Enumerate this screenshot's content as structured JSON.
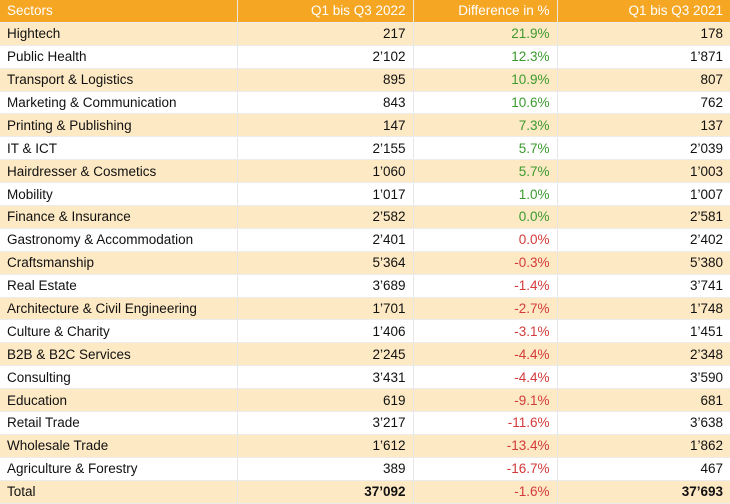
{
  "headers": [
    "Sectors",
    "Q1 bis Q3 2022",
    "Difference in %",
    "Q1 bis Q3 2021"
  ],
  "colors": {
    "header_bg": "#f5a623",
    "band_bg": "#fde9c4",
    "positive": "#3b9a2e",
    "negative": "#d33a3a"
  },
  "rows": [
    {
      "sector": "Hightech",
      "q2022": "217",
      "diff": "21.9%",
      "q2021": "178",
      "trend": "pos"
    },
    {
      "sector": "Public Health",
      "q2022": "2’102",
      "diff": "12.3%",
      "q2021": "1’871",
      "trend": "pos"
    },
    {
      "sector": "Transport & Logistics",
      "q2022": "895",
      "diff": "10.9%",
      "q2021": "807",
      "trend": "pos"
    },
    {
      "sector": "Marketing & Communication",
      "q2022": "843",
      "diff": "10.6%",
      "q2021": "762",
      "trend": "pos"
    },
    {
      "sector": "Printing & Publishing",
      "q2022": "147",
      "diff": "7.3%",
      "q2021": "137",
      "trend": "pos"
    },
    {
      "sector": "IT & ICT",
      "q2022": "2’155",
      "diff": "5.7%",
      "q2021": "2’039",
      "trend": "pos"
    },
    {
      "sector": "Hairdresser & Cosmetics",
      "q2022": "1’060",
      "diff": "5.7%",
      "q2021": "1’003",
      "trend": "pos"
    },
    {
      "sector": "Mobility",
      "q2022": "1’017",
      "diff": "1.0%",
      "q2021": "1’007",
      "trend": "pos"
    },
    {
      "sector": "Finance & Insurance",
      "q2022": "2’582",
      "diff": "0.0%",
      "q2021": "2’581",
      "trend": "pos"
    },
    {
      "sector": "Gastronomy & Accommodation",
      "q2022": "2’401",
      "diff": "0.0%",
      "q2021": "2’402",
      "trend": "neg"
    },
    {
      "sector": "Craftsmanship",
      "q2022": "5’364",
      "diff": "-0.3%",
      "q2021": "5’380",
      "trend": "neg"
    },
    {
      "sector": "Real Estate",
      "q2022": "3’689",
      "diff": "-1.4%",
      "q2021": "3’741",
      "trend": "neg"
    },
    {
      "sector": "Architecture & Civil Engineering",
      "q2022": "1’701",
      "diff": "-2.7%",
      "q2021": "1’748",
      "trend": "neg"
    },
    {
      "sector": "Culture & Charity",
      "q2022": "1’406",
      "diff": "-3.1%",
      "q2021": "1’451",
      "trend": "neg"
    },
    {
      "sector": "B2B & B2C Services",
      "q2022": "2’245",
      "diff": "-4.4%",
      "q2021": "2’348",
      "trend": "neg"
    },
    {
      "sector": "Consulting",
      "q2022": "3’431",
      "diff": "-4.4%",
      "q2021": "3’590",
      "trend": "neg"
    },
    {
      "sector": "Education",
      "q2022": "619",
      "diff": "-9.1%",
      "q2021": "681",
      "trend": "neg"
    },
    {
      "sector": "Retail Trade",
      "q2022": "3’217",
      "diff": "-11.6%",
      "q2021": "3’638",
      "trend": "neg"
    },
    {
      "sector": "Wholesale Trade",
      "q2022": "1’612",
      "diff": "-13.4%",
      "q2021": "1’862",
      "trend": "neg"
    },
    {
      "sector": "Agriculture & Forestry",
      "q2022": "389",
      "diff": "-16.7%",
      "q2021": "467",
      "trend": "neg"
    }
  ],
  "total": {
    "sector": "Total",
    "q2022": "37’092",
    "diff": "-1.6%",
    "q2021": "37’693",
    "trend": "neg"
  }
}
